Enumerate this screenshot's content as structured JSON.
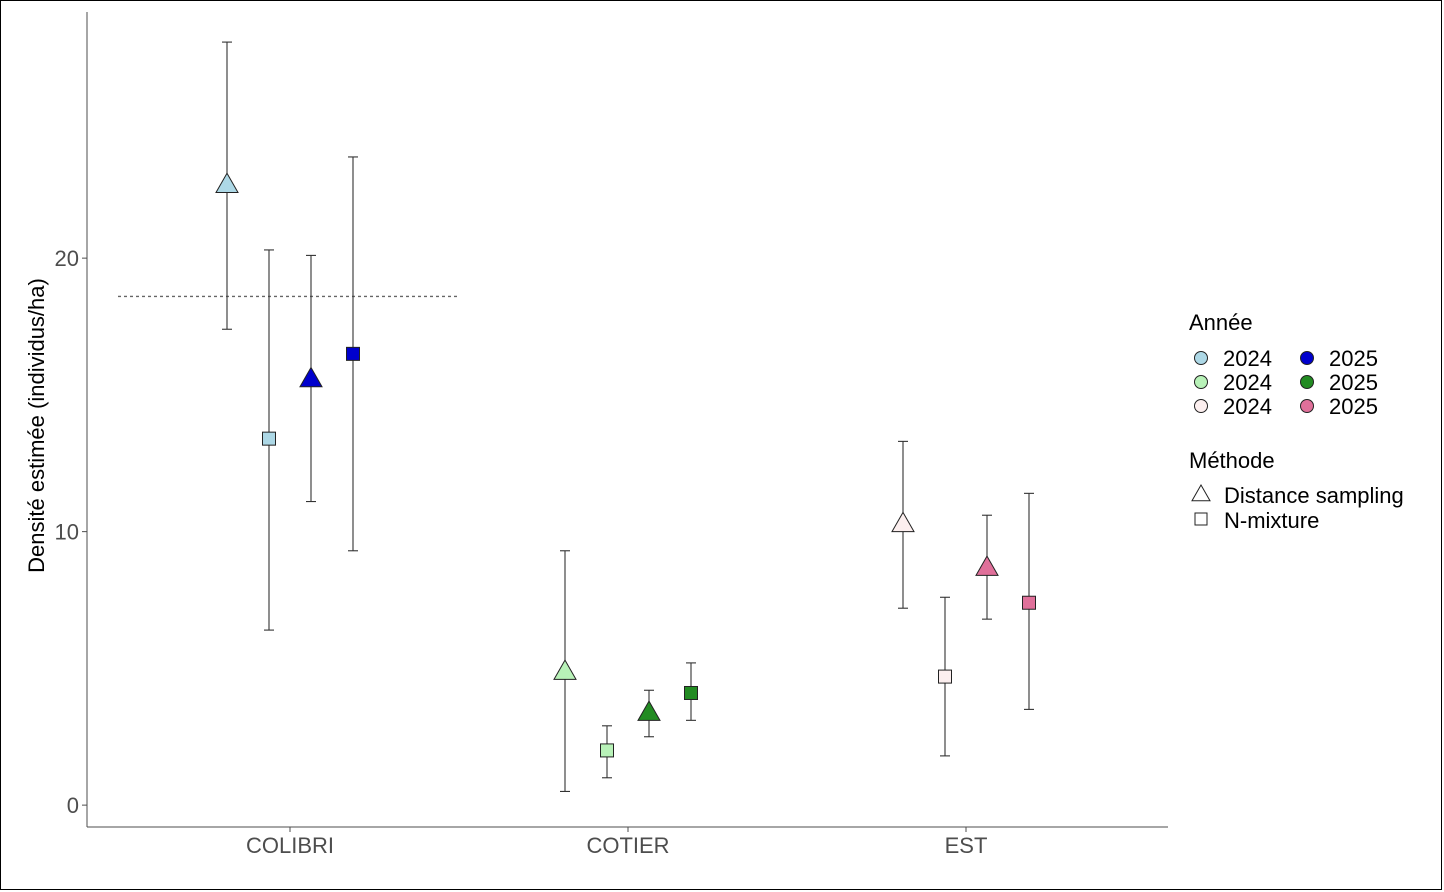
{
  "chart_data": {
    "type": "scatter",
    "ylabel": "Densité estimée (individus/ha)",
    "xlabel": "",
    "categories": [
      "COLIBRI",
      "COTIER",
      "EST"
    ],
    "ylim": [
      -0.8,
      29
    ],
    "yticks": [
      0,
      10,
      20
    ],
    "reference_line": {
      "y": 18.6,
      "style": "dotted",
      "category": "COLIBRI"
    },
    "series": [
      {
        "category": "COLIBRI",
        "year": "2024",
        "method": "Distance sampling",
        "color": "#add8e6",
        "value": 22.7,
        "lower": 17.4,
        "upper": 27.9
      },
      {
        "category": "COLIBRI",
        "year": "2024",
        "method": "N-mixture",
        "color": "#add8e6",
        "value": 13.4,
        "lower": 6.4,
        "upper": 20.3
      },
      {
        "category": "COLIBRI",
        "year": "2025",
        "method": "Distance sampling",
        "color": "#0000cd",
        "value": 15.6,
        "lower": 11.1,
        "upper": 20.1
      },
      {
        "category": "COLIBRI",
        "year": "2025",
        "method": "N-mixture",
        "color": "#0000cd",
        "value": 16.5,
        "lower": 9.3,
        "upper": 23.7
      },
      {
        "category": "COTIER",
        "year": "2024",
        "method": "Distance sampling",
        "color": "#b8f2b8",
        "value": 4.9,
        "lower": 0.5,
        "upper": 9.3
      },
      {
        "category": "COTIER",
        "year": "2024",
        "method": "N-mixture",
        "color": "#b8f2b8",
        "value": 2.0,
        "lower": 1.0,
        "upper": 2.9
      },
      {
        "category": "COTIER",
        "year": "2025",
        "method": "Distance sampling",
        "color": "#228b22",
        "value": 3.4,
        "lower": 2.5,
        "upper": 4.2
      },
      {
        "category": "COTIER",
        "year": "2025",
        "method": "N-mixture",
        "color": "#228b22",
        "value": 4.1,
        "lower": 3.1,
        "upper": 5.2
      },
      {
        "category": "EST",
        "year": "2024",
        "method": "Distance sampling",
        "color": "#fcefef",
        "value": 10.3,
        "lower": 7.2,
        "upper": 13.3
      },
      {
        "category": "EST",
        "year": "2024",
        "method": "N-mixture",
        "color": "#fcefef",
        "value": 4.7,
        "lower": 1.8,
        "upper": 7.6
      },
      {
        "category": "EST",
        "year": "2025",
        "method": "Distance sampling",
        "color": "#e0709a",
        "value": 8.7,
        "lower": 6.8,
        "upper": 10.6
      },
      {
        "category": "EST",
        "year": "2025",
        "method": "N-mixture",
        "color": "#e0709a",
        "value": 7.4,
        "lower": 3.5,
        "upper": 11.4
      }
    ],
    "legend": {
      "placement": "right",
      "year_title": "Année",
      "year_entries": [
        {
          "label": "2024",
          "color": "#add8e6"
        },
        {
          "label": "2025",
          "color": "#0000cd"
        },
        {
          "label": "2024",
          "color": "#b8f2b8"
        },
        {
          "label": "2025",
          "color": "#228b22"
        },
        {
          "label": "2024",
          "color": "#fcefef"
        },
        {
          "label": "2025",
          "color": "#e0709a"
        }
      ],
      "method_title": "Méthode",
      "method_entries": [
        {
          "label": "Distance sampling",
          "shape": "triangle"
        },
        {
          "label": "N-mixture",
          "shape": "square"
        }
      ]
    }
  }
}
